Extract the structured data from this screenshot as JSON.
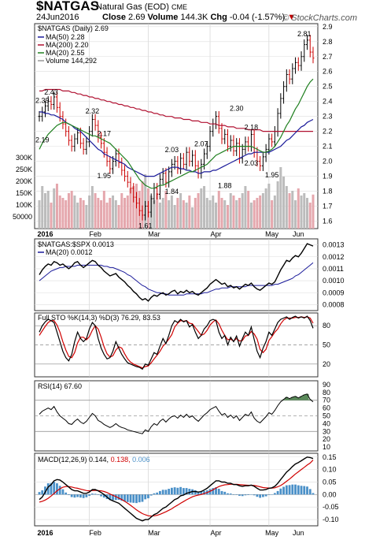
{
  "header": {
    "symbol": "$NATGAS",
    "name": "Natural Gas (EOD)",
    "exchange": "CME",
    "date": "24Jun2016",
    "close_label": "Close",
    "close": "2.69",
    "volume_label": "Volume",
    "volume": "144.3K",
    "chg_label": "Chg",
    "chg": "-0.04 (-1.57%)",
    "chg_arrow": "▼",
    "brand": "© StockCharts.com"
  },
  "colors": {
    "up": "#000000",
    "down": "#cc0000",
    "ma50": "#1a1a9a",
    "ma200": "#b01030",
    "ma20": "#208020",
    "vol": "#bcbcbc",
    "vol_down": "#e5a7ad"
  },
  "chart_data": [
    {
      "type": "candlestick",
      "title": "$NATGAS (Daily) 2.69",
      "legend": [
        "MA(50) 2.28",
        "MA(200) 2.20",
        "MA(20) 2.55",
        "Volume 144,292"
      ],
      "months": [
        "2016",
        "Feb",
        "Mar",
        "Apr",
        "May",
        "Jun"
      ],
      "ylim": [
        1.55,
        2.92
      ],
      "yticks": [
        1.6,
        1.7,
        1.8,
        1.9,
        2.0,
        2.1,
        2.2,
        2.3,
        2.4,
        2.5,
        2.6,
        2.7,
        2.8,
        2.9
      ],
      "volume_ticks": [
        "300K",
        "250K",
        "200K",
        "150K",
        "100K",
        "50000"
      ],
      "annotations": [
        {
          "label": "2.43",
          "value": 2.43
        },
        {
          "label": "2.39",
          "value": 2.39
        },
        {
          "label": "2.32",
          "value": 2.32
        },
        {
          "label": "2.17",
          "value": 2.17
        },
        {
          "label": "2.19",
          "value": 2.19
        },
        {
          "label": "1.95",
          "value": 1.95
        },
        {
          "label": "1.61",
          "value": 1.61
        },
        {
          "label": "1.84",
          "value": 1.84
        },
        {
          "label": "2.03",
          "value": 2.03
        },
        {
          "label": "2.07",
          "value": 2.07
        },
        {
          "label": "2.30",
          "value": 2.3
        },
        {
          "label": "1.88",
          "value": 1.88
        },
        {
          "label": "2.18",
          "value": 2.18
        },
        {
          "label": "2.03",
          "value": 2.03
        },
        {
          "label": "1.95",
          "value": 1.95
        },
        {
          "label": "2.81",
          "value": 2.81
        }
      ],
      "close": [
        2.3,
        2.33,
        2.37,
        2.4,
        2.38,
        2.43,
        2.36,
        2.3,
        2.25,
        2.2,
        2.14,
        2.1,
        2.15,
        2.19,
        2.12,
        2.08,
        2.13,
        2.2,
        2.28,
        2.24,
        2.16,
        2.12,
        2.06,
        2.0,
        1.95,
        2.0,
        2.05,
        1.99,
        1.94,
        1.9,
        1.86,
        1.82,
        1.76,
        1.72,
        1.67,
        1.64,
        1.7,
        1.66,
        1.75,
        1.82,
        1.78,
        1.88,
        1.92,
        1.86,
        1.93,
        1.98,
        2.0,
        1.95,
        2.02,
        1.98,
        2.06,
        2.0,
        2.04,
        1.97,
        1.92,
        1.98,
        2.05,
        2.1,
        2.2,
        2.25,
        2.3,
        2.22,
        2.15,
        2.18,
        2.1,
        2.14,
        2.07,
        2.12,
        2.02,
        2.08,
        2.13,
        2.1,
        2.18,
        2.06,
        2.0,
        1.97,
        2.03,
        2.08,
        2.15,
        2.13,
        2.2,
        2.32,
        2.42,
        2.5,
        2.58,
        2.55,
        2.62,
        2.66,
        2.64,
        2.7,
        2.78,
        2.81,
        2.73,
        2.69
      ],
      "ma50": [
        2.33,
        2.33,
        2.32,
        2.32,
        2.31,
        2.31,
        2.3,
        2.29,
        2.28,
        2.26,
        2.25,
        2.24,
        2.22,
        2.21,
        2.2,
        2.18,
        2.16,
        2.14,
        2.12,
        2.1,
        2.08,
        2.07,
        2.05,
        2.04,
        2.03,
        2.02,
        2.01,
        2.0,
        1.99,
        1.98,
        1.96,
        1.95,
        1.94,
        1.93,
        1.92,
        1.91,
        1.9,
        1.9,
        1.9,
        1.9,
        1.91,
        1.92,
        1.93,
        1.94,
        1.95,
        1.96,
        1.96,
        1.96,
        1.95,
        1.95,
        1.94,
        1.94,
        1.93,
        1.93,
        1.92,
        1.92,
        1.93,
        1.93,
        1.93,
        1.94,
        1.94,
        1.95,
        1.96,
        1.97,
        1.98,
        1.99,
        2.0,
        2.01,
        2.02,
        2.03,
        2.04,
        2.05,
        2.05,
        2.06,
        2.06,
        2.06,
        2.06,
        2.06,
        2.06,
        2.07,
        2.08,
        2.09,
        2.1,
        2.12,
        2.14,
        2.15,
        2.17,
        2.19,
        2.21,
        2.23,
        2.24,
        2.26,
        2.27,
        2.28
      ],
      "ma200": [
        2.47,
        2.47,
        2.48,
        2.48,
        2.48,
        2.48,
        2.48,
        2.48,
        2.47,
        2.47,
        2.47,
        2.46,
        2.46,
        2.45,
        2.45,
        2.44,
        2.44,
        2.43,
        2.43,
        2.42,
        2.42,
        2.41,
        2.41,
        2.4,
        2.4,
        2.39,
        2.39,
        2.38,
        2.38,
        2.37,
        2.37,
        2.36,
        2.36,
        2.35,
        2.35,
        2.34,
        2.34,
        2.33,
        2.33,
        2.32,
        2.32,
        2.31,
        2.31,
        2.3,
        2.3,
        2.3,
        2.29,
        2.29,
        2.29,
        2.28,
        2.28,
        2.28,
        2.27,
        2.27,
        2.27,
        2.26,
        2.26,
        2.26,
        2.25,
        2.25,
        2.25,
        2.24,
        2.24,
        2.24,
        2.23,
        2.23,
        2.23,
        2.22,
        2.22,
        2.22,
        2.22,
        2.21,
        2.21,
        2.21,
        2.21,
        2.21,
        2.2,
        2.2,
        2.2,
        2.2,
        2.2,
        2.2,
        2.2,
        2.2,
        2.2,
        2.2,
        2.2,
        2.2,
        2.2,
        2.2,
        2.2,
        2.2,
        2.2,
        2.2
      ],
      "ma20": [
        2.08,
        2.12,
        2.15,
        2.18,
        2.2,
        2.22,
        2.24,
        2.25,
        2.26,
        2.26,
        2.25,
        2.24,
        2.23,
        2.22,
        2.21,
        2.2,
        2.19,
        2.18,
        2.17,
        2.17,
        2.16,
        2.15,
        2.14,
        2.13,
        2.12,
        2.1,
        2.08,
        2.06,
        2.04,
        2.02,
        2.0,
        1.97,
        1.94,
        1.91,
        1.88,
        1.86,
        1.84,
        1.83,
        1.82,
        1.82,
        1.83,
        1.84,
        1.84,
        1.85,
        1.86,
        1.87,
        1.88,
        1.89,
        1.9,
        1.91,
        1.92,
        1.93,
        1.93,
        1.94,
        1.95,
        1.96,
        1.97,
        1.98,
        2.0,
        2.02,
        2.04,
        2.05,
        2.06,
        2.07,
        2.08,
        2.09,
        2.1,
        2.1,
        2.1,
        2.1,
        2.1,
        2.1,
        2.1,
        2.09,
        2.08,
        2.07,
        2.06,
        2.06,
        2.07,
        2.08,
        2.1,
        2.13,
        2.16,
        2.2,
        2.24,
        2.27,
        2.31,
        2.35,
        2.38,
        2.42,
        2.46,
        2.5,
        2.53,
        2.55
      ],
      "volume": [
        120,
        180,
        150,
        160,
        110,
        170,
        190,
        140,
        130,
        120,
        150,
        160,
        140,
        110,
        130,
        120,
        100,
        140,
        180,
        150,
        130,
        120,
        160,
        110,
        130,
        140,
        120,
        100,
        150,
        130,
        140,
        170,
        180,
        190,
        160,
        200,
        230,
        170,
        140,
        120,
        150,
        110,
        130,
        160,
        120,
        140,
        100,
        130,
        150,
        120,
        110,
        140,
        90,
        130,
        150,
        170,
        180,
        130,
        120,
        140,
        110,
        160,
        130,
        120,
        100,
        150,
        140,
        120,
        130,
        150,
        180,
        160,
        110,
        120,
        130,
        140,
        150,
        170,
        190,
        120,
        140,
        200,
        260,
        220,
        180,
        150,
        160,
        120,
        170,
        140,
        150,
        130,
        110,
        144
      ]
    },
    {
      "type": "line",
      "title": "$NATGAS:$SPX 0.0013",
      "legend": [
        "MA(20) 0.0012"
      ],
      "ylim": [
        0.00075,
        0.00135
      ],
      "yticks": [
        0.0008,
        0.0009,
        0.001,
        0.0011,
        0.0012,
        0.0013
      ],
      "ytick_labels": [
        "0.0008",
        "0.0009",
        "0.0010",
        "0.0011",
        "0.0012",
        "0.0013"
      ],
      "ratio": [
        0.00105,
        0.00109,
        0.00112,
        0.00114,
        0.00113,
        0.00116,
        0.00115,
        0.00113,
        0.00114,
        0.00112,
        0.0011,
        0.00112,
        0.00115,
        0.00116,
        0.00113,
        0.00111,
        0.00113,
        0.00115,
        0.00117,
        0.00116,
        0.00113,
        0.00111,
        0.00108,
        0.00106,
        0.00104,
        0.00105,
        0.00106,
        0.00103,
        0.00101,
        0.00099,
        0.00096,
        0.00094,
        0.00091,
        0.00089,
        0.00086,
        0.00084,
        0.00085,
        0.00083,
        0.00086,
        0.00088,
        0.00087,
        0.00089,
        0.0009,
        0.00088,
        0.00089,
        0.00091,
        0.00092,
        0.00089,
        0.00091,
        0.0009,
        0.00092,
        0.0009,
        0.00091,
        0.00089,
        0.00088,
        0.0009,
        0.00092,
        0.00094,
        0.00097,
        0.00099,
        0.00101,
        0.00099,
        0.00097,
        0.00098,
        0.00095,
        0.00096,
        0.00094,
        0.00095,
        0.00093,
        0.00095,
        0.00097,
        0.00096,
        0.00098,
        0.00095,
        0.00093,
        0.00092,
        0.00094,
        0.00096,
        0.00098,
        0.00097,
        0.00099,
        0.00104,
        0.00109,
        0.00113,
        0.00117,
        0.00116,
        0.00119,
        0.00121,
        0.0012,
        0.00123,
        0.00127,
        0.00131,
        0.0013,
        0.00129
      ],
      "ma20": [
        0.001,
        0.00102,
        0.00104,
        0.00106,
        0.00108,
        0.00109,
        0.0011,
        0.00111,
        0.00111,
        0.00112,
        0.00112,
        0.00112,
        0.00112,
        0.00113,
        0.00113,
        0.00113,
        0.00113,
        0.00113,
        0.00113,
        0.00113,
        0.00113,
        0.00113,
        0.00112,
        0.00112,
        0.00111,
        0.00111,
        0.0011,
        0.00109,
        0.00108,
        0.00107,
        0.00105,
        0.00104,
        0.00102,
        0.001,
        0.00098,
        0.00096,
        0.00095,
        0.00093,
        0.00092,
        0.00091,
        0.0009,
        0.0009,
        0.00089,
        0.00089,
        0.00088,
        0.00088,
        0.00088,
        0.00088,
        0.00088,
        0.00088,
        0.00089,
        0.00089,
        0.00089,
        0.00089,
        0.00089,
        0.00089,
        0.0009,
        0.0009,
        0.00091,
        0.00092,
        0.00093,
        0.00093,
        0.00094,
        0.00094,
        0.00094,
        0.00095,
        0.00095,
        0.00095,
        0.00095,
        0.00095,
        0.00095,
        0.00096,
        0.00096,
        0.00096,
        0.00096,
        0.00096,
        0.00096,
        0.00096,
        0.00096,
        0.00096,
        0.00097,
        0.00097,
        0.00098,
        0.00099,
        0.001,
        0.00101,
        0.00102,
        0.00104,
        0.00105,
        0.00107,
        0.00109,
        0.00111,
        0.00113,
        0.00115
      ]
    },
    {
      "type": "line",
      "title": "Full STO %K(14,3) %D(3) 76.29, 83.53",
      "ylim": [
        0,
        100
      ],
      "yticks": [
        20,
        50,
        80
      ],
      "guides": [
        20,
        50,
        80
      ],
      "k": [
        70,
        80,
        86,
        90,
        88,
        85,
        70,
        55,
        40,
        30,
        25,
        35,
        55,
        70,
        60,
        55,
        60,
        75,
        85,
        80,
        60,
        45,
        35,
        28,
        30,
        40,
        55,
        45,
        35,
        28,
        22,
        20,
        18,
        16,
        15,
        12,
        20,
        18,
        28,
        38,
        35,
        48,
        60,
        52,
        65,
        80,
        88,
        85,
        90,
        86,
        88,
        78,
        82,
        70,
        60,
        65,
        75,
        80,
        88,
        90,
        88,
        70,
        60,
        65,
        50,
        62,
        55,
        64,
        48,
        60,
        70,
        65,
        78,
        58,
        40,
        30,
        45,
        55,
        70,
        65,
        75,
        85,
        90,
        92,
        94,
        90,
        93,
        95,
        92,
        94,
        92,
        95,
        88,
        76
      ],
      "d": [
        65,
        72,
        79,
        85,
        88,
        88,
        81,
        70,
        55,
        42,
        32,
        30,
        38,
        53,
        62,
        62,
        58,
        63,
        73,
        80,
        75,
        62,
        47,
        36,
        31,
        33,
        42,
        47,
        45,
        36,
        28,
        23,
        20,
        18,
        16,
        14,
        16,
        17,
        22,
        28,
        34,
        40,
        48,
        53,
        59,
        66,
        78,
        84,
        88,
        87,
        88,
        84,
        83,
        77,
        71,
        65,
        67,
        73,
        81,
        86,
        89,
        83,
        73,
        65,
        58,
        59,
        56,
        60,
        56,
        57,
        64,
        65,
        71,
        67,
        59,
        43,
        38,
        43,
        57,
        63,
        70,
        75,
        83,
        89,
        92,
        92,
        92,
        93,
        93,
        94,
        93,
        94,
        92,
        84
      ]
    },
    {
      "type": "line",
      "title": "RSI(14) 67.60",
      "ylim": [
        5,
        95
      ],
      "yticks": [
        10,
        20,
        30,
        40,
        50,
        60,
        70,
        80,
        90
      ],
      "guides": [
        30,
        70
      ],
      "rsi": [
        52,
        56,
        58,
        60,
        58,
        62,
        55,
        50,
        47,
        44,
        40,
        39,
        43,
        46,
        42,
        40,
        43,
        48,
        53,
        50,
        44,
        42,
        39,
        37,
        35,
        37,
        40,
        37,
        35,
        34,
        32,
        31,
        30,
        29,
        28,
        27,
        32,
        30,
        36,
        40,
        38,
        43,
        46,
        42,
        46,
        49,
        50,
        47,
        51,
        48,
        52,
        48,
        50,
        46,
        43,
        47,
        51,
        54,
        58,
        60,
        62,
        56,
        51,
        53,
        48,
        51,
        47,
        50,
        44,
        48,
        52,
        50,
        55,
        47,
        43,
        41,
        45,
        49,
        54,
        52,
        57,
        63,
        68,
        71,
        74,
        72,
        74,
        75,
        73,
        75,
        77,
        78,
        71,
        68
      ]
    },
    {
      "type": "line",
      "title": "MACD(12,26,9)",
      "legend": [
        "0.144",
        "0.138",
        "0.006"
      ],
      "ylim": [
        -0.125,
        0.165
      ],
      "yticks": [
        -0.1,
        -0.05,
        0.0,
        0.05,
        0.1,
        0.15
      ],
      "ytick_labels": [
        "-0.10",
        "-0.05",
        "0.00",
        "0.05",
        "0.10",
        "0.15"
      ],
      "macd": [
        -0.02,
        -0.01,
        0.01,
        0.03,
        0.04,
        0.055,
        0.06,
        0.058,
        0.05,
        0.04,
        0.03,
        0.02,
        0.015,
        0.015,
        0.01,
        0.005,
        0.005,
        0.01,
        0.02,
        0.02,
        0.015,
        0.008,
        0.0,
        -0.01,
        -0.02,
        -0.025,
        -0.03,
        -0.035,
        -0.045,
        -0.055,
        -0.065,
        -0.075,
        -0.085,
        -0.095,
        -0.1,
        -0.105,
        -0.1,
        -0.1,
        -0.09,
        -0.08,
        -0.075,
        -0.065,
        -0.055,
        -0.05,
        -0.04,
        -0.03,
        -0.02,
        -0.015,
        -0.005,
        -0.002,
        0.005,
        0.008,
        0.012,
        0.012,
        0.01,
        0.012,
        0.018,
        0.025,
        0.035,
        0.045,
        0.055,
        0.055,
        0.05,
        0.05,
        0.045,
        0.045,
        0.04,
        0.04,
        0.035,
        0.033,
        0.035,
        0.035,
        0.038,
        0.033,
        0.025,
        0.018,
        0.018,
        0.02,
        0.025,
        0.027,
        0.033,
        0.045,
        0.06,
        0.075,
        0.09,
        0.1,
        0.112,
        0.122,
        0.128,
        0.135,
        0.143,
        0.15,
        0.148,
        0.144
      ],
      "signal": [
        -0.03,
        -0.027,
        -0.022,
        -0.015,
        -0.006,
        0.004,
        0.015,
        0.023,
        0.029,
        0.032,
        0.032,
        0.03,
        0.027,
        0.025,
        0.022,
        0.019,
        0.016,
        0.015,
        0.016,
        0.017,
        0.016,
        0.015,
        0.012,
        0.008,
        0.002,
        -0.003,
        -0.008,
        -0.014,
        -0.02,
        -0.027,
        -0.035,
        -0.043,
        -0.052,
        -0.061,
        -0.069,
        -0.076,
        -0.081,
        -0.085,
        -0.086,
        -0.085,
        -0.083,
        -0.079,
        -0.074,
        -0.069,
        -0.063,
        -0.057,
        -0.049,
        -0.042,
        -0.035,
        -0.028,
        -0.021,
        -0.015,
        -0.009,
        -0.005,
        -0.002,
        0.0,
        0.004,
        0.008,
        0.013,
        0.019,
        0.026,
        0.032,
        0.036,
        0.039,
        0.04,
        0.041,
        0.041,
        0.041,
        0.04,
        0.039,
        0.038,
        0.037,
        0.037,
        0.036,
        0.034,
        0.031,
        0.028,
        0.027,
        0.026,
        0.026,
        0.027,
        0.031,
        0.036,
        0.044,
        0.053,
        0.062,
        0.072,
        0.082,
        0.091,
        0.1,
        0.109,
        0.118,
        0.126,
        0.138
      ]
    }
  ]
}
